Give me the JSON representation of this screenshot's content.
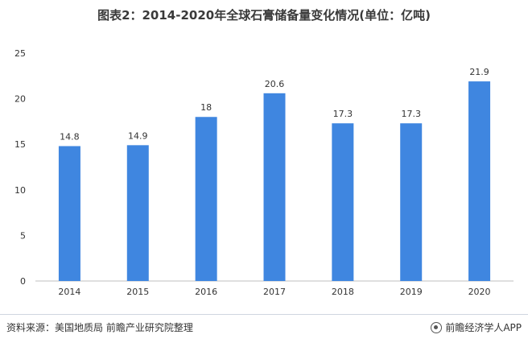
{
  "title": "图表2：2014-2020年全球石膏储备量变化情况(单位：亿吨)",
  "source": "资料来源：美国地质局 前瞻产业研究院整理",
  "brand": "前瞻经济学人APP",
  "colors": {
    "bar": "#3f86e0",
    "axis": "#bfbfbf",
    "text": "#333333"
  },
  "chart_data": {
    "type": "bar",
    "title": "图表2：2014-2020年全球石膏储备量变化情况(单位：亿吨)",
    "categories": [
      "2014",
      "2015",
      "2016",
      "2017",
      "2018",
      "2019",
      "2020"
    ],
    "values": [
      14.8,
      14.9,
      18,
      20.6,
      17.3,
      17.3,
      21.9
    ],
    "labels": [
      "14.8",
      "14.9",
      "18",
      "20.6",
      "17.3",
      "17.3",
      "21.9"
    ],
    "ylim": [
      0,
      25
    ],
    "yticks": [
      "0",
      "5",
      "10",
      "15",
      "20",
      "25"
    ],
    "grid": false,
    "legend": "none"
  }
}
